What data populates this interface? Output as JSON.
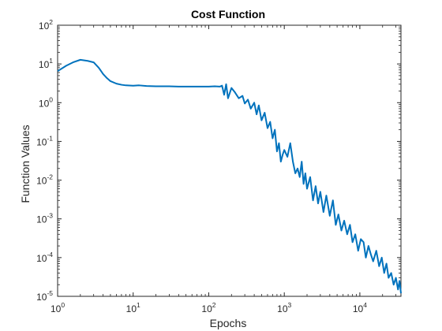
{
  "chart_data": {
    "type": "line",
    "title": "Cost Function",
    "xlabel": "Epochs",
    "ylabel": "Function Values",
    "xscale": "log",
    "yscale": "log",
    "xlim": [
      1,
      35000
    ],
    "ylim": [
      1e-05,
      100
    ],
    "x_ticks": [
      {
        "base": "10",
        "exp": "0"
      },
      {
        "base": "10",
        "exp": "1"
      },
      {
        "base": "10",
        "exp": "2"
      },
      {
        "base": "10",
        "exp": "3"
      },
      {
        "base": "10",
        "exp": "4"
      }
    ],
    "y_ticks": [
      {
        "base": "10",
        "exp": "-5"
      },
      {
        "base": "10",
        "exp": "-4"
      },
      {
        "base": "10",
        "exp": "-3"
      },
      {
        "base": "10",
        "exp": "-2"
      },
      {
        "base": "10",
        "exp": "-1"
      },
      {
        "base": "10",
        "exp": "0"
      },
      {
        "base": "10",
        "exp": "1"
      },
      {
        "base": "10",
        "exp": "2"
      }
    ],
    "grid": false,
    "box": true,
    "line_color": "#0072BD",
    "series": [
      {
        "x": [
          1,
          1.3,
          1.6,
          2,
          2.5,
          3,
          3.5,
          4,
          4.5,
          5,
          6,
          7,
          8,
          10,
          12,
          15,
          20,
          30,
          40,
          60,
          80,
          100,
          120,
          140,
          150,
          160,
          170,
          180,
          200,
          220,
          250,
          280,
          300,
          330,
          360,
          400,
          430,
          460,
          500,
          550,
          600,
          650,
          700,
          750,
          800,
          850,
          900,
          950,
          1000,
          1100,
          1200,
          1300,
          1400,
          1500,
          1600,
          1700,
          1800,
          1900,
          2000,
          2200,
          2400,
          2600,
          2800,
          3000,
          3300,
          3600,
          4000,
          4400,
          4800,
          5200,
          5700,
          6200,
          6800,
          7400,
          8000,
          8700,
          9500,
          10300,
          11200,
          12000,
          13000,
          14000,
          15000,
          16500,
          18000,
          19500,
          21000,
          22500,
          24000,
          26000,
          28000,
          30000,
          32000,
          33500,
          35000
        ],
        "y": [
          6.5,
          9,
          11,
          12.8,
          12,
          11,
          8,
          5.5,
          4.3,
          3.6,
          3.1,
          2.9,
          2.8,
          2.75,
          2.8,
          2.7,
          2.65,
          2.65,
          2.6,
          2.6,
          2.6,
          2.6,
          2.65,
          2.6,
          2.75,
          1.6,
          3.0,
          1.3,
          2.4,
          1.9,
          1.3,
          1.5,
          0.95,
          1.2,
          0.7,
          1.0,
          0.5,
          0.85,
          0.35,
          0.55,
          0.22,
          0.32,
          0.12,
          0.2,
          0.055,
          0.09,
          0.03,
          0.045,
          0.06,
          0.04,
          0.09,
          0.03,
          0.015,
          0.02,
          0.012,
          0.03,
          0.008,
          0.015,
          0.006,
          0.012,
          0.003,
          0.007,
          0.0025,
          0.005,
          0.0015,
          0.004,
          0.0012,
          0.003,
          0.0007,
          0.0013,
          0.0005,
          0.0009,
          0.0004,
          0.0007,
          0.00025,
          0.0004,
          0.00015,
          0.0003,
          0.00025,
          0.0001,
          0.0002,
          0.00012,
          8e-05,
          0.00015,
          6e-05,
          0.0001,
          4e-05,
          7e-05,
          3e-05,
          4e-05,
          2e-05,
          3e-05,
          1.5e-05,
          2.5e-05,
          1.2e-05
        ]
      }
    ]
  }
}
